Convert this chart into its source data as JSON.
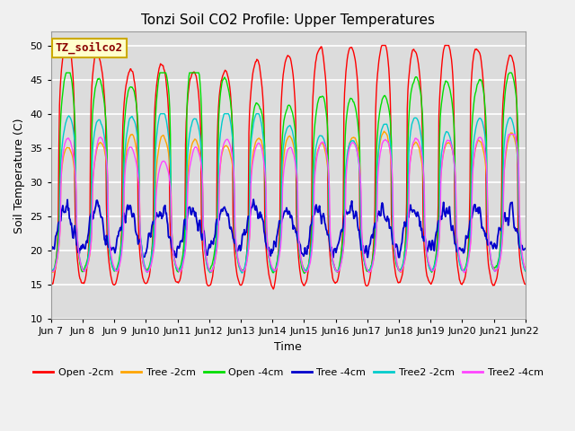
{
  "title": "Tonzi Soil CO2 Profile: Upper Temperatures",
  "ylabel": "Soil Temperature (C)",
  "xlabel": "Time",
  "annotation": "TZ_soilco2",
  "ylim": [
    10,
    52
  ],
  "yticks": [
    10,
    15,
    20,
    25,
    30,
    35,
    40,
    45,
    50
  ],
  "series_colors": {
    "Open -2cm": "#ff0000",
    "Tree -2cm": "#ffa500",
    "Open -4cm": "#00dd00",
    "Tree -4cm": "#0000cc",
    "Tree2 -2cm": "#00cccc",
    "Tree2 -4cm": "#ff44ff"
  },
  "n_points": 720,
  "days": 15,
  "start_day": 7,
  "end_day": 22,
  "background_color": "#dcdcdc",
  "fig_bg_color": "#f0f0f0",
  "grid_color": "#ffffff",
  "title_fontsize": 11,
  "label_fontsize": 9,
  "tick_fontsize": 8,
  "linewidth": 1.0
}
